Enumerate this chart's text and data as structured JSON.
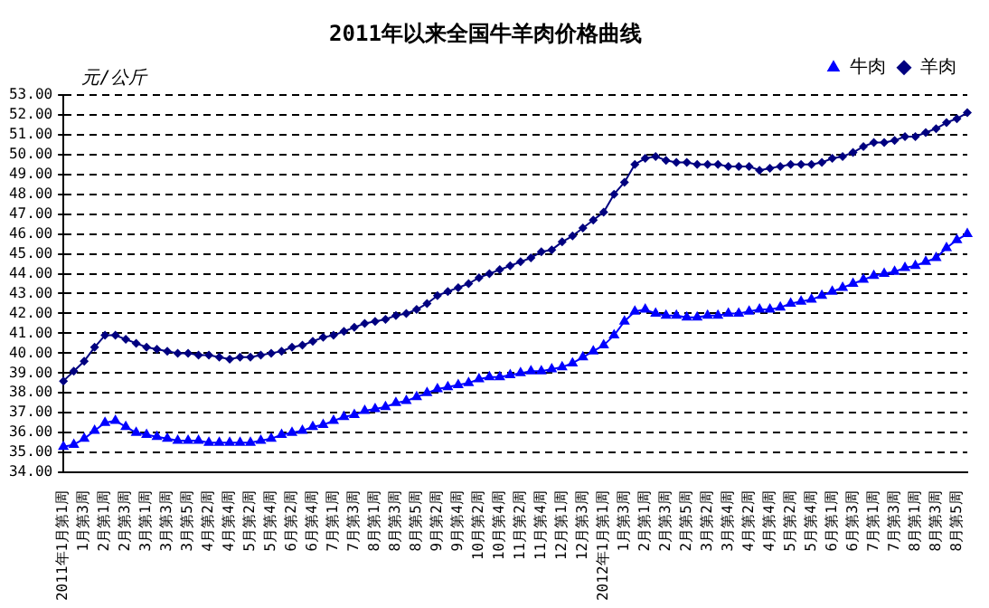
{
  "chart_data": {
    "type": "line",
    "title": "2011年以来全国牛羊肉价格曲线",
    "ylabel": "元/公斤",
    "categories": [
      "2011年1月第1周",
      null,
      "1月第3周",
      null,
      "2月第1周",
      null,
      "2月第3周",
      null,
      "3月第1周",
      null,
      "3月第3周",
      null,
      "3月第5周",
      null,
      "4月第2周",
      null,
      "4月第4周",
      null,
      "5月第2周",
      null,
      "5月第4周",
      null,
      "6月第2周",
      null,
      "6月第4周",
      null,
      "7月第1周",
      null,
      "7月第3周",
      null,
      "8月第1周",
      null,
      "8月第3周",
      null,
      "8月第5周",
      null,
      "9月第2周",
      null,
      "9月第4周",
      null,
      "10月第2周",
      null,
      "10月第4周",
      null,
      "11月第2周",
      null,
      "11月第4周",
      null,
      "12月第1周",
      null,
      "12月第3周",
      null,
      "2012年1月第1周",
      null,
      "1月第3周",
      null,
      "2月第1周",
      null,
      "2月第3周",
      null,
      "2月第5周",
      null,
      "3月第2周",
      null,
      "3月第4周",
      null,
      "4月第2周",
      null,
      "4月第4周",
      null,
      "5月第2周",
      null,
      "5月第4周",
      null,
      "6月第1周",
      null,
      "6月第3周",
      null,
      "7月第1周",
      null,
      "7月第3周",
      null,
      "8月第1周",
      null,
      "8月第3周",
      null,
      "8月第5周",
      null
    ],
    "series": [
      {
        "name": "牛肉",
        "color": "#0000ff",
        "marker": "triangle",
        "values": [
          35.3,
          35.4,
          35.7,
          36.1,
          36.5,
          36.6,
          36.3,
          36.0,
          35.9,
          35.8,
          35.7,
          35.6,
          35.6,
          35.6,
          35.5,
          35.5,
          35.5,
          35.5,
          35.5,
          35.6,
          35.7,
          35.9,
          36.0,
          36.1,
          36.3,
          36.4,
          36.6,
          36.8,
          36.9,
          37.1,
          37.2,
          37.3,
          37.5,
          37.6,
          37.8,
          38.0,
          38.2,
          38.3,
          38.4,
          38.5,
          38.7,
          38.8,
          38.8,
          38.9,
          39.0,
          39.1,
          39.1,
          39.2,
          39.3,
          39.5,
          39.8,
          40.1,
          40.4,
          40.9,
          41.6,
          42.1,
          42.2,
          42.0,
          41.9,
          41.9,
          41.8,
          41.8,
          41.9,
          41.9,
          42.0,
          42.0,
          42.1,
          42.2,
          42.2,
          42.3,
          42.5,
          42.6,
          42.7,
          42.9,
          43.1,
          43.3,
          43.5,
          43.7,
          43.9,
          44.0,
          44.1,
          44.3,
          44.4,
          44.6,
          44.8,
          45.3,
          45.7,
          46.0
        ]
      },
      {
        "name": "羊肉",
        "color": "#000080",
        "marker": "diamond",
        "values": [
          38.6,
          39.1,
          39.6,
          40.3,
          40.9,
          40.9,
          40.7,
          40.5,
          40.3,
          40.2,
          40.1,
          40.0,
          40.0,
          39.9,
          39.9,
          39.8,
          39.7,
          39.8,
          39.8,
          39.9,
          40.0,
          40.1,
          40.3,
          40.4,
          40.6,
          40.8,
          40.9,
          41.1,
          41.3,
          41.5,
          41.6,
          41.7,
          41.9,
          42.0,
          42.2,
          42.5,
          42.9,
          43.1,
          43.3,
          43.5,
          43.8,
          44.0,
          44.2,
          44.4,
          44.6,
          44.8,
          45.1,
          45.2,
          45.6,
          45.9,
          46.3,
          46.7,
          47.1,
          48.0,
          48.6,
          49.5,
          49.8,
          49.9,
          49.7,
          49.6,
          49.6,
          49.5,
          49.5,
          49.5,
          49.4,
          49.4,
          49.4,
          49.2,
          49.3,
          49.4,
          49.5,
          49.5,
          49.5,
          49.6,
          49.8,
          49.9,
          50.1,
          50.4,
          50.6,
          50.6,
          50.7,
          50.9,
          50.9,
          51.1,
          51.3,
          51.6,
          51.8,
          52.1
        ]
      }
    ],
    "ylim": [
      34,
      53
    ],
    "yticks": [
      {
        "value": 34,
        "label": "34.00"
      },
      {
        "value": 35,
        "label": "35.00"
      },
      {
        "value": 36,
        "label": "36.00"
      },
      {
        "value": 37,
        "label": "37.00"
      },
      {
        "value": 38,
        "label": "38.00"
      },
      {
        "value": 39,
        "label": "39.00"
      },
      {
        "value": 40,
        "label": "40.00"
      },
      {
        "value": 41,
        "label": "41.00"
      },
      {
        "value": 42,
        "label": "42.00"
      },
      {
        "value": 43,
        "label": "43.00"
      },
      {
        "value": 44,
        "label": "44.00"
      },
      {
        "value": 45,
        "label": "45.00"
      },
      {
        "value": 46,
        "label": "46.00"
      },
      {
        "value": 47,
        "label": "47.00"
      },
      {
        "value": 48,
        "label": "48.00"
      },
      {
        "value": 49,
        "label": "49.00"
      },
      {
        "value": 50,
        "label": "50.00"
      },
      {
        "value": 51,
        "label": "51.00"
      },
      {
        "value": 52,
        "label": "52.00"
      },
      {
        "value": 53,
        "label": "53.00"
      }
    ],
    "grid": "y",
    "legend": "top right",
    "line_style": "solid"
  }
}
